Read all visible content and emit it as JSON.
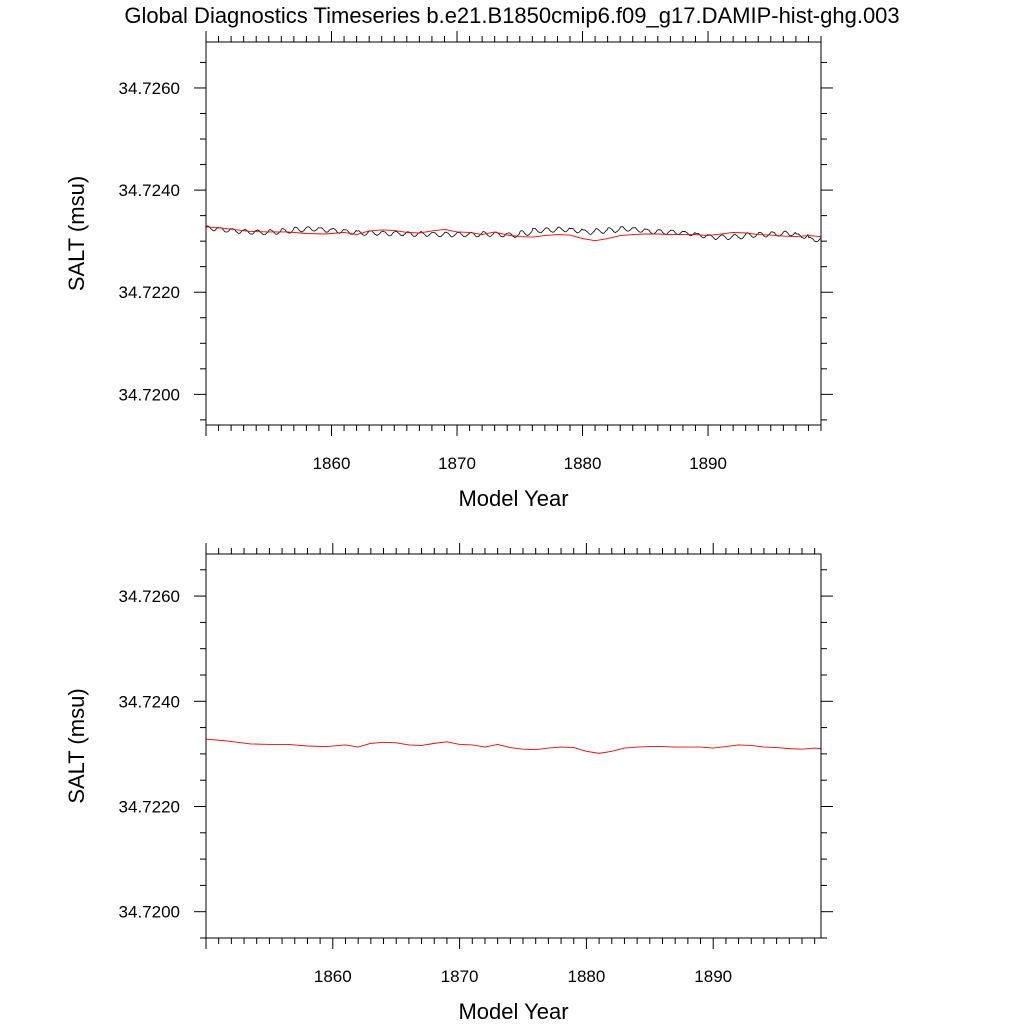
{
  "title": "Global Diagnostics Timeseries b.e21.B1850cmip6.f09_g17.DAMIP-hist-ghg.003",
  "colors": {
    "monthly": "#000000",
    "annual": "#ff0000",
    "frame": "#000000",
    "background": "#ffffff"
  },
  "chart_data": [
    {
      "type": "line",
      "xlabel": "Model Year",
      "ylabel": "SALT (msu)",
      "xlim": [
        1850,
        1899
      ],
      "ylim": [
        34.7194,
        34.7269
      ],
      "xticks": [
        1860,
        1870,
        1880,
        1890
      ],
      "xtick_labels": [
        "1860",
        "1870",
        "1880",
        "1890"
      ],
      "yticks": [
        34.72,
        34.722,
        34.724,
        34.726
      ],
      "ytick_labels": [
        "34.7200",
        "34.7220",
        "34.7240",
        "34.7260"
      ],
      "grid": false,
      "series": [
        {
          "style": "monthly",
          "start": 1850.04,
          "step": 0.0833333,
          "mean": [
            34.72325,
            34.72322,
            34.7232,
            34.72318,
            34.72317,
            34.72318,
            34.7232,
            34.72323,
            34.72324,
            34.72322,
            34.7232,
            34.72318,
            34.72316,
            34.72316,
            34.72315,
            34.72315,
            34.72314,
            34.72314,
            34.72313,
            34.72313,
            34.72313,
            34.72313,
            34.72314,
            34.72313,
            34.72312,
            34.72316,
            34.72321,
            34.72322,
            34.72323,
            34.72321,
            34.72318,
            34.7232,
            34.72322,
            34.72324,
            34.72322,
            34.72319,
            34.72318,
            34.72317,
            34.72315,
            34.72311,
            34.72308,
            34.72308,
            34.72309,
            34.72312,
            34.72313,
            34.72314,
            34.72315,
            34.7231,
            34.72303,
            34.723,
            34.72304,
            34.72309,
            34.72313,
            34.72314,
            34.72315,
            34.72315,
            34.72314,
            34.72313,
            34.72314,
            34.72314,
            34.72313,
            34.72313,
            34.72312,
            34.72313,
            34.72315,
            34.72318,
            34.72317,
            34.72315,
            34.72313,
            34.72312,
            34.72311,
            34.72312,
            34.7231,
            34.72309,
            34.72309,
            34.72308
          ],
          "amplitude": 4.5e-05,
          "noise_seed": 7
        },
        {
          "style": "annual",
          "x": [
            1850.0,
            1851.5,
            1852.5,
            1853.5,
            1855.0,
            1856.5,
            1858.0,
            1859.5,
            1861.0,
            1862.0,
            1863.0,
            1864.0,
            1865.0,
            1866.0,
            1867.0,
            1868.0,
            1869.0,
            1870.0,
            1871.0,
            1872.0,
            1873.0,
            1874.0,
            1875.0,
            1876.0,
            1877.0,
            1878.0,
            1879.0,
            1880.0,
            1881.0,
            1882.0,
            1883.0,
            1884.0,
            1885.0,
            1886.0,
            1887.0,
            1888.0,
            1889.0,
            1890.0,
            1891.0,
            1892.0,
            1893.0,
            1894.0,
            1895.0,
            1896.0,
            1897.0,
            1898.0,
            1899.0
          ],
          "values": [
            34.72328,
            34.72325,
            34.72322,
            34.72319,
            34.72318,
            34.72318,
            34.72315,
            34.72314,
            34.72317,
            34.72313,
            34.7232,
            34.72322,
            34.72321,
            34.72317,
            34.72316,
            34.7232,
            34.72323,
            34.72318,
            34.72317,
            34.72313,
            34.72318,
            34.72312,
            34.72309,
            34.72308,
            34.72311,
            34.72313,
            34.72312,
            34.72305,
            34.72301,
            34.72305,
            34.72311,
            34.72313,
            34.72314,
            34.72314,
            34.72313,
            34.72313,
            34.72313,
            34.72311,
            34.72314,
            34.72317,
            34.72316,
            34.72313,
            34.72312,
            34.7231,
            34.72309,
            34.72311,
            34.72309
          ]
        }
      ]
    },
    {
      "type": "line",
      "xlabel": "Model Year",
      "ylabel": "SALT (msu)",
      "xlim": [
        1850,
        1898.5
      ],
      "ylim": [
        34.7195,
        34.7268
      ],
      "xticks": [
        1860,
        1870,
        1880,
        1890
      ],
      "xtick_labels": [
        "1860",
        "1870",
        "1880",
        "1890"
      ],
      "yticks": [
        34.72,
        34.722,
        34.724,
        34.726
      ],
      "ytick_labels": [
        "34.7200",
        "34.7220",
        "34.7240",
        "34.7260"
      ],
      "grid": false,
      "series": [
        {
          "style": "annual",
          "x": [
            1850.0,
            1851.5,
            1852.5,
            1853.5,
            1855.0,
            1856.5,
            1858.0,
            1859.5,
            1861.0,
            1862.0,
            1863.0,
            1864.0,
            1865.0,
            1866.0,
            1867.0,
            1868.0,
            1869.0,
            1870.0,
            1871.0,
            1872.0,
            1873.0,
            1874.0,
            1875.0,
            1876.0,
            1877.0,
            1878.0,
            1879.0,
            1880.0,
            1881.0,
            1882.0,
            1883.0,
            1884.0,
            1885.0,
            1886.0,
            1887.0,
            1888.0,
            1889.0,
            1890.0,
            1891.0,
            1892.0,
            1893.0,
            1894.0,
            1895.0,
            1896.0,
            1897.0,
            1898.0,
            1898.5
          ],
          "values": [
            34.72328,
            34.72325,
            34.72322,
            34.72319,
            34.72318,
            34.72318,
            34.72315,
            34.72314,
            34.72317,
            34.72313,
            34.7232,
            34.72322,
            34.72321,
            34.72317,
            34.72316,
            34.7232,
            34.72323,
            34.72318,
            34.72317,
            34.72313,
            34.72318,
            34.72312,
            34.72309,
            34.72308,
            34.72311,
            34.72313,
            34.72312,
            34.72305,
            34.72301,
            34.72305,
            34.72311,
            34.72313,
            34.72314,
            34.72314,
            34.72313,
            34.72313,
            34.72313,
            34.72311,
            34.72314,
            34.72317,
            34.72316,
            34.72313,
            34.72312,
            34.7231,
            34.72309,
            34.72311,
            34.7231
          ]
        }
      ]
    }
  ]
}
